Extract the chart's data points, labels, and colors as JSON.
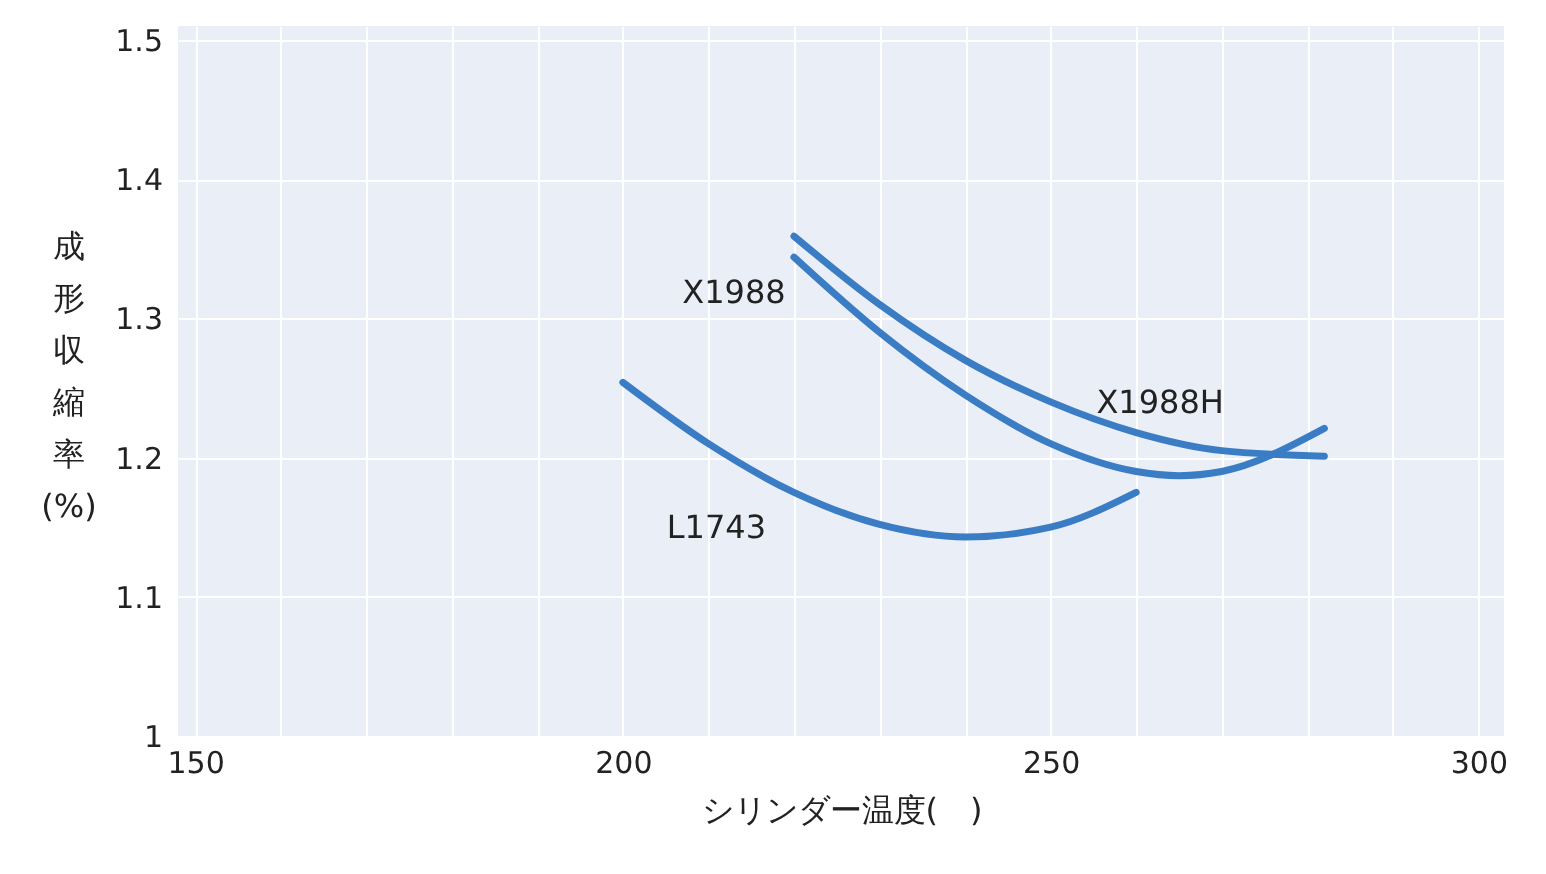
{
  "chart_data": {
    "type": "line",
    "xlabel": "シリンダー温度(　)",
    "ylabel": "成形収縮率(%)",
    "xlim": [
      148,
      303
    ],
    "ylim": [
      1,
      1.51
    ],
    "xticks": [
      150,
      {
        "value": 160,
        "label": null
      },
      {
        "value": 170,
        "label": null
      },
      {
        "value": 180,
        "label": null
      },
      {
        "value": 190,
        "label": null
      },
      200,
      {
        "value": 210,
        "label": null
      },
      {
        "value": 220,
        "label": null
      },
      {
        "value": 230,
        "label": null
      },
      {
        "value": 240,
        "label": null
      },
      250,
      {
        "value": 260,
        "label": null
      },
      {
        "value": 270,
        "label": null
      },
      {
        "value": 280,
        "label": null
      },
      {
        "value": 290,
        "label": null
      },
      300
    ],
    "yticks": [
      1,
      1.1,
      1.2,
      1.3,
      1.4,
      1.5
    ],
    "grid": true,
    "marker": "none",
    "line_style": "solid",
    "series": [
      {
        "name": "L1743",
        "color": "#3a7dc4",
        "x": [
          200,
          210,
          220,
          230,
          240,
          250,
          260
        ],
        "values": [
          1.254,
          1.21,
          1.175,
          1.152,
          1.143,
          1.15,
          1.175
        ]
      },
      {
        "name": "X1988",
        "color": "#3a7dc4",
        "x": [
          220,
          230,
          240,
          250,
          260,
          265,
          270,
          282
        ],
        "values": [
          1.344,
          1.29,
          1.245,
          1.21,
          1.19,
          1.187,
          1.19,
          1.221
        ]
      },
      {
        "name": "X1988H",
        "color": "#3a7dc4",
        "x": [
          220,
          230,
          240,
          250,
          260,
          270,
          282
        ],
        "values": [
          1.359,
          1.31,
          1.27,
          1.24,
          1.218,
          1.205,
          1.201
        ]
      }
    ]
  }
}
